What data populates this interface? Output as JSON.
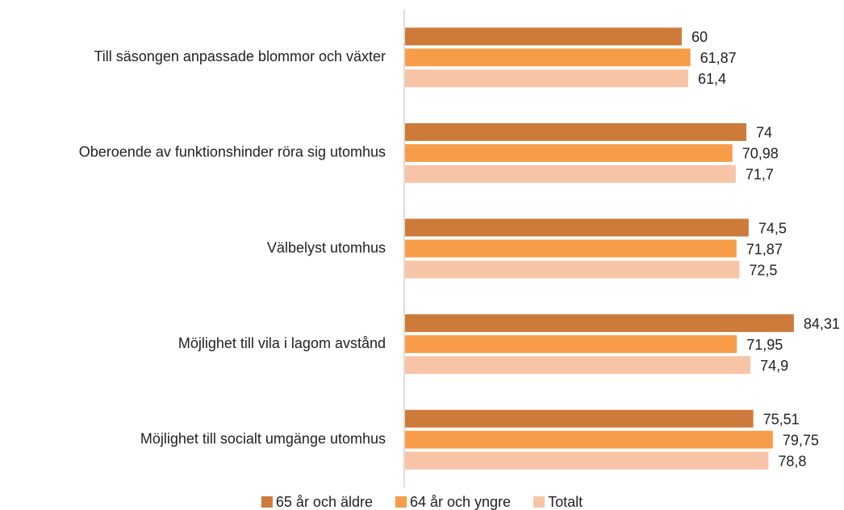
{
  "chart_data": {
    "type": "hbar",
    "categories": [
      "Till säsongen anpassade blommor och växter",
      "Oberoende av funktionshinder röra sig utomhus",
      "Välbelyst utomhus",
      "Möjlighet till vila i lagom avstånd",
      "Möjlighet till socialt umgänge utomhus"
    ],
    "series": [
      {
        "name": "65 år och äldre",
        "color": "#cd7b3a",
        "values": [
          60,
          74,
          74.5,
          84.31,
          75.51
        ],
        "value_labels": [
          "60",
          "74",
          "74,5",
          "84,31",
          "75,51"
        ]
      },
      {
        "name": "64 år och yngre",
        "color": "#f79c48",
        "values": [
          61.87,
          70.98,
          71.87,
          71.95,
          79.75
        ],
        "value_labels": [
          "61,87",
          "70,98",
          "71,87",
          "71,95",
          "79,75"
        ]
      },
      {
        "name": "Totalt",
        "color": "#f8c4a8",
        "values": [
          61.4,
          71.7,
          72.5,
          74.9,
          78.8
        ],
        "value_labels": [
          "61,4",
          "71,7",
          "72,5",
          "74,9",
          "78,8"
        ]
      }
    ],
    "xlim": [
      0,
      95
    ],
    "legend": "bottom"
  }
}
